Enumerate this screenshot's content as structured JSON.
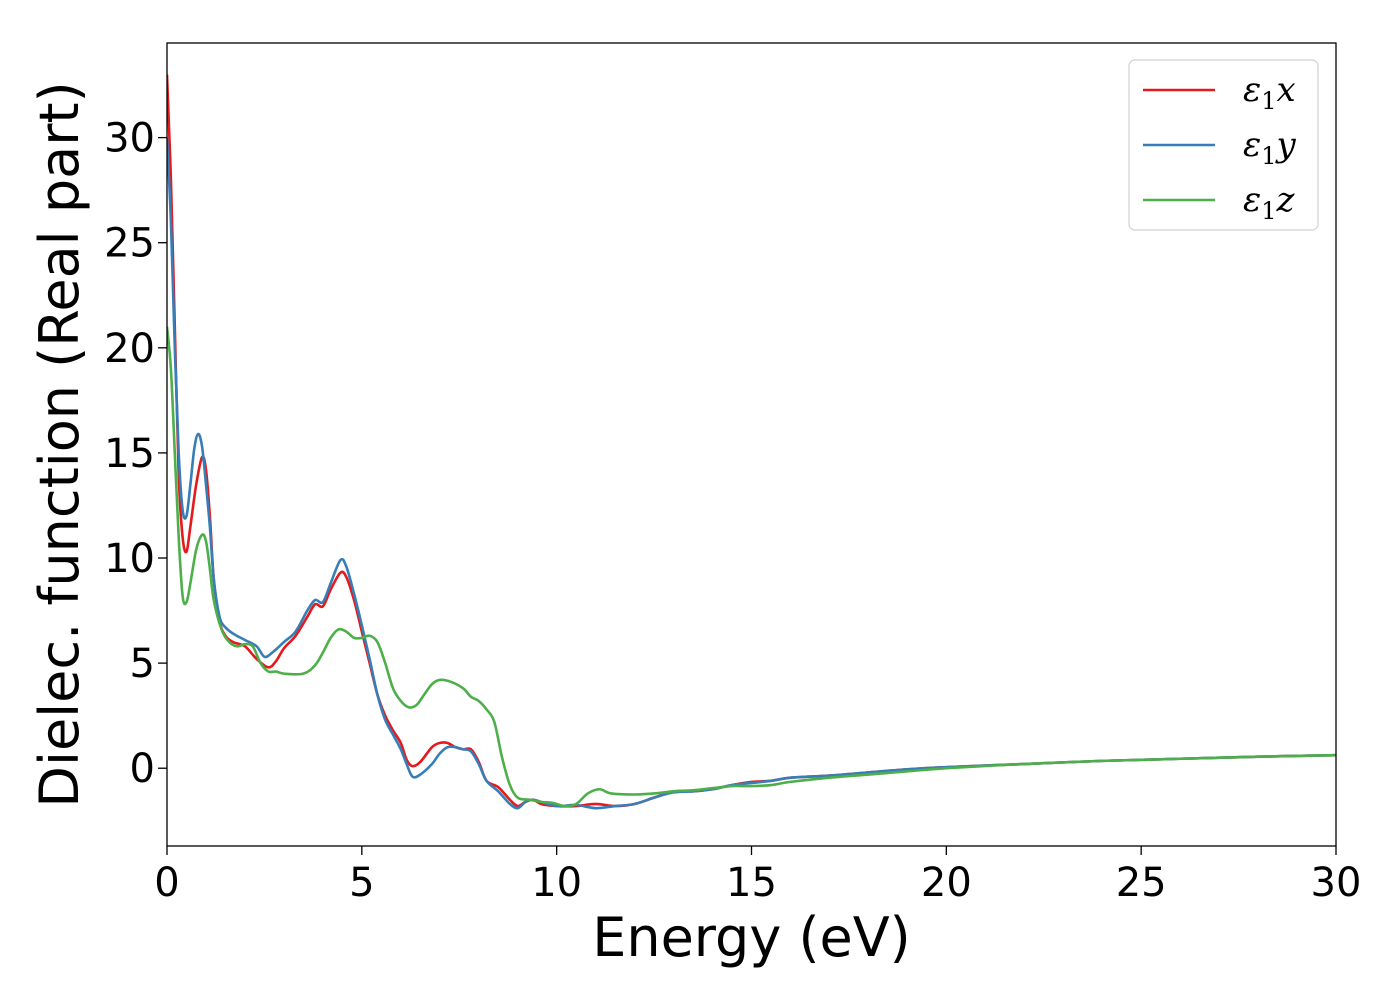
{
  "chart_data": {
    "type": "line",
    "title": "",
    "xlabel": "Energy (eV)",
    "ylabel": "Dielec. function (Real part)",
    "xlim": [
      0,
      30
    ],
    "ylim": [
      -3.7,
      34.5
    ],
    "xticks": [
      0,
      5,
      10,
      15,
      20,
      25,
      30
    ],
    "xtick_labels": [
      "0",
      "5",
      "10",
      "15",
      "20",
      "25",
      "30"
    ],
    "yticks": [
      0,
      5,
      10,
      15,
      20,
      25,
      30
    ],
    "ytick_labels": [
      "0",
      "5",
      "10",
      "15",
      "20",
      "25",
      "30"
    ],
    "grid": false,
    "legend_position": "top-right",
    "series": [
      {
        "name": "ε₁x",
        "legend_main": "ε",
        "legend_sub": "1",
        "legend_var": "x",
        "color": "#e41a1c",
        "points": [
          [
            0,
            33
          ],
          [
            0.1,
            28
          ],
          [
            0.2,
            21
          ],
          [
            0.3,
            14
          ],
          [
            0.4,
            11
          ],
          [
            0.5,
            10.3
          ],
          [
            0.6,
            11.5
          ],
          [
            0.75,
            13.5
          ],
          [
            0.9,
            14.8
          ],
          [
            1.0,
            14.2
          ],
          [
            1.1,
            12
          ],
          [
            1.2,
            9
          ],
          [
            1.35,
            7
          ],
          [
            1.5,
            6.3
          ],
          [
            1.7,
            6
          ],
          [
            2.0,
            5.8
          ],
          [
            2.3,
            5.2
          ],
          [
            2.6,
            4.8
          ],
          [
            2.8,
            5.1
          ],
          [
            3.0,
            5.7
          ],
          [
            3.3,
            6.3
          ],
          [
            3.6,
            7.2
          ],
          [
            3.8,
            7.8
          ],
          [
            4.0,
            7.7
          ],
          [
            4.2,
            8.5
          ],
          [
            4.45,
            9.3
          ],
          [
            4.6,
            9.1
          ],
          [
            4.8,
            8
          ],
          [
            5.0,
            6.5
          ],
          [
            5.2,
            5
          ],
          [
            5.4,
            3.5
          ],
          [
            5.6,
            2.5
          ],
          [
            5.8,
            1.8
          ],
          [
            6.0,
            1.2
          ],
          [
            6.15,
            0.4
          ],
          [
            6.3,
            0.1
          ],
          [
            6.5,
            0.3
          ],
          [
            6.8,
            1
          ],
          [
            7.0,
            1.2
          ],
          [
            7.2,
            1.2
          ],
          [
            7.4,
            1
          ],
          [
            7.6,
            0.9
          ],
          [
            7.8,
            0.9
          ],
          [
            8.0,
            0.3
          ],
          [
            8.2,
            -0.6
          ],
          [
            8.5,
            -0.9
          ],
          [
            8.8,
            -1.5
          ],
          [
            9.0,
            -1.8
          ],
          [
            9.2,
            -1.6
          ],
          [
            9.4,
            -1.5
          ],
          [
            9.6,
            -1.7
          ],
          [
            10.0,
            -1.8
          ],
          [
            10.5,
            -1.8
          ],
          [
            11.0,
            -1.7
          ],
          [
            11.5,
            -1.8
          ],
          [
            12.0,
            -1.7
          ],
          [
            12.5,
            -1.4
          ],
          [
            13.0,
            -1.1
          ],
          [
            13.5,
            -1.1
          ],
          [
            14.0,
            -1.0
          ],
          [
            14.5,
            -0.8
          ],
          [
            15.0,
            -0.65
          ],
          [
            15.5,
            -0.6
          ],
          [
            16.0,
            -0.45
          ],
          [
            17.0,
            -0.35
          ],
          [
            18.0,
            -0.2
          ],
          [
            19.0,
            -0.05
          ],
          [
            20.0,
            0.05
          ],
          [
            22.0,
            0.2
          ],
          [
            24.0,
            0.35
          ],
          [
            26.0,
            0.45
          ],
          [
            28.0,
            0.55
          ],
          [
            30.0,
            0.62
          ]
        ]
      },
      {
        "name": "ε₁y",
        "legend_main": "ε",
        "legend_sub": "1",
        "legend_var": "y",
        "color": "#377eb8",
        "points": [
          [
            0,
            30
          ],
          [
            0.1,
            26
          ],
          [
            0.2,
            20
          ],
          [
            0.3,
            15
          ],
          [
            0.4,
            12.3
          ],
          [
            0.5,
            12
          ],
          [
            0.6,
            13.5
          ],
          [
            0.7,
            15.2
          ],
          [
            0.8,
            15.9
          ],
          [
            0.9,
            15.3
          ],
          [
            1.0,
            13.5
          ],
          [
            1.1,
            11.5
          ],
          [
            1.2,
            9
          ],
          [
            1.35,
            7.2
          ],
          [
            1.5,
            6.7
          ],
          [
            1.7,
            6.4
          ],
          [
            2.0,
            6.1
          ],
          [
            2.3,
            5.8
          ],
          [
            2.5,
            5.3
          ],
          [
            2.7,
            5.5
          ],
          [
            3.0,
            6
          ],
          [
            3.3,
            6.5
          ],
          [
            3.6,
            7.5
          ],
          [
            3.8,
            8
          ],
          [
            4.0,
            7.9
          ],
          [
            4.2,
            8.8
          ],
          [
            4.45,
            9.9
          ],
          [
            4.6,
            9.6
          ],
          [
            4.8,
            8.3
          ],
          [
            5.0,
            6.8
          ],
          [
            5.2,
            5.2
          ],
          [
            5.4,
            3.5
          ],
          [
            5.6,
            2.3
          ],
          [
            5.8,
            1.6
          ],
          [
            6.0,
            0.9
          ],
          [
            6.15,
            0.2
          ],
          [
            6.3,
            -0.4
          ],
          [
            6.5,
            -0.3
          ],
          [
            6.8,
            0.2
          ],
          [
            7.0,
            0.7
          ],
          [
            7.2,
            1
          ],
          [
            7.4,
            1.0
          ],
          [
            7.6,
            0.9
          ],
          [
            7.8,
            0.8
          ],
          [
            8.0,
            0.2
          ],
          [
            8.2,
            -0.6
          ],
          [
            8.5,
            -1.1
          ],
          [
            8.8,
            -1.7
          ],
          [
            9.0,
            -1.9
          ],
          [
            9.2,
            -1.6
          ],
          [
            9.4,
            -1.5
          ],
          [
            9.6,
            -1.6
          ],
          [
            10.0,
            -1.8
          ],
          [
            10.5,
            -1.75
          ],
          [
            11.0,
            -1.9
          ],
          [
            11.5,
            -1.8
          ],
          [
            12.0,
            -1.7
          ],
          [
            12.5,
            -1.4
          ],
          [
            13.0,
            -1.15
          ],
          [
            13.5,
            -1.1
          ],
          [
            14.0,
            -1.0
          ],
          [
            14.5,
            -0.8
          ],
          [
            15.0,
            -0.7
          ],
          [
            15.5,
            -0.6
          ],
          [
            16.0,
            -0.45
          ],
          [
            17.0,
            -0.35
          ],
          [
            18.0,
            -0.2
          ],
          [
            19.0,
            -0.05
          ],
          [
            20.0,
            0.05
          ],
          [
            22.0,
            0.2
          ],
          [
            24.0,
            0.35
          ],
          [
            26.0,
            0.45
          ],
          [
            28.0,
            0.55
          ],
          [
            30.0,
            0.62
          ]
        ]
      },
      {
        "name": "ε₁z",
        "legend_main": "ε",
        "legend_sub": "1",
        "legend_var": "z",
        "color": "#4daf4a",
        "points": [
          [
            0,
            21
          ],
          [
            0.1,
            19
          ],
          [
            0.2,
            15
          ],
          [
            0.3,
            11
          ],
          [
            0.4,
            8.2
          ],
          [
            0.5,
            7.9
          ],
          [
            0.6,
            8.8
          ],
          [
            0.75,
            10.4
          ],
          [
            0.9,
            11.1
          ],
          [
            1.0,
            10.8
          ],
          [
            1.1,
            9.5
          ],
          [
            1.2,
            8
          ],
          [
            1.4,
            6.6
          ],
          [
            1.6,
            6
          ],
          [
            1.8,
            5.8
          ],
          [
            2.0,
            5.9
          ],
          [
            2.2,
            5.8
          ],
          [
            2.4,
            5
          ],
          [
            2.6,
            4.6
          ],
          [
            2.8,
            4.6
          ],
          [
            3.0,
            4.5
          ],
          [
            3.5,
            4.5
          ],
          [
            3.8,
            4.9
          ],
          [
            4.0,
            5.5
          ],
          [
            4.2,
            6.2
          ],
          [
            4.4,
            6.6
          ],
          [
            4.6,
            6.5
          ],
          [
            4.8,
            6.2
          ],
          [
            5.0,
            6.2
          ],
          [
            5.2,
            6.3
          ],
          [
            5.4,
            6
          ],
          [
            5.6,
            5
          ],
          [
            5.8,
            3.8
          ],
          [
            6.0,
            3.2
          ],
          [
            6.2,
            2.9
          ],
          [
            6.4,
            3
          ],
          [
            6.6,
            3.5
          ],
          [
            6.8,
            4
          ],
          [
            7.0,
            4.2
          ],
          [
            7.3,
            4.1
          ],
          [
            7.6,
            3.8
          ],
          [
            7.8,
            3.4
          ],
          [
            8.0,
            3.2
          ],
          [
            8.2,
            2.8
          ],
          [
            8.4,
            2.2
          ],
          [
            8.6,
            0.5
          ],
          [
            8.8,
            -0.8
          ],
          [
            9.0,
            -1.4
          ],
          [
            9.3,
            -1.5
          ],
          [
            9.6,
            -1.6
          ],
          [
            9.9,
            -1.65
          ],
          [
            10.2,
            -1.8
          ],
          [
            10.5,
            -1.7
          ],
          [
            10.8,
            -1.2
          ],
          [
            11.1,
            -1.0
          ],
          [
            11.4,
            -1.2
          ],
          [
            12.0,
            -1.25
          ],
          [
            12.5,
            -1.2
          ],
          [
            13.0,
            -1.1
          ],
          [
            13.5,
            -1.05
          ],
          [
            14.0,
            -0.95
          ],
          [
            14.5,
            -0.85
          ],
          [
            15.0,
            -0.85
          ],
          [
            15.5,
            -0.8
          ],
          [
            16.0,
            -0.65
          ],
          [
            17.0,
            -0.45
          ],
          [
            18.0,
            -0.3
          ],
          [
            19.0,
            -0.15
          ],
          [
            20.0,
            0.0
          ],
          [
            22.0,
            0.2
          ],
          [
            24.0,
            0.35
          ],
          [
            26.0,
            0.45
          ],
          [
            28.0,
            0.55
          ],
          [
            30.0,
            0.62
          ]
        ]
      }
    ]
  }
}
